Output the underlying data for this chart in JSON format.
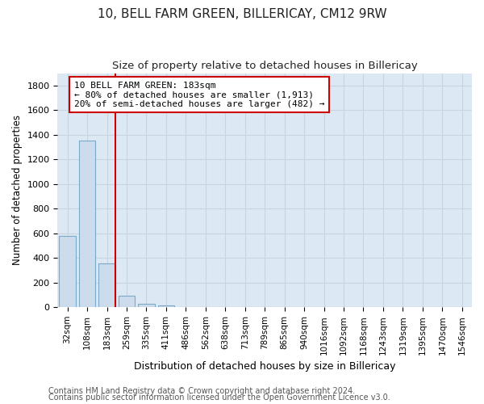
{
  "title1": "10, BELL FARM GREEN, BILLERICAY, CM12 9RW",
  "title2": "Size of property relative to detached houses in Billericay",
  "xlabel": "Distribution of detached houses by size in Billericay",
  "ylabel": "Number of detached properties",
  "footnote1": "Contains HM Land Registry data © Crown copyright and database right 2024.",
  "footnote2": "Contains public sector information licensed under the Open Government Licence v3.0.",
  "categories": [
    "32sqm",
    "108sqm",
    "183sqm",
    "259sqm",
    "335sqm",
    "411sqm",
    "486sqm",
    "562sqm",
    "638sqm",
    "713sqm",
    "789sqm",
    "865sqm",
    "940sqm",
    "1016sqm",
    "1092sqm",
    "1168sqm",
    "1243sqm",
    "1319sqm",
    "1395sqm",
    "1470sqm",
    "1546sqm"
  ],
  "values": [
    580,
    1355,
    355,
    95,
    30,
    14,
    0,
    0,
    0,
    0,
    0,
    0,
    0,
    0,
    0,
    0,
    0,
    0,
    0,
    0,
    0
  ],
  "bar_color": "#ccdcec",
  "bar_edge_color": "#7aaac8",
  "red_line_index": 2,
  "annotation_line1": "10 BELL FARM GREEN: 183sqm",
  "annotation_line2": "← 80% of detached houses are smaller (1,913)",
  "annotation_line3": "20% of semi-detached houses are larger (482) →",
  "annotation_box_color": "#ffffff",
  "annotation_box_edge": "#cc0000",
  "red_line_color": "#cc0000",
  "ylim": [
    0,
    1900
  ],
  "yticks": [
    0,
    200,
    400,
    600,
    800,
    1000,
    1200,
    1400,
    1600,
    1800
  ],
  "grid_color": "#c8d4e0",
  "background_color": "#ffffff",
  "plot_bg_color": "#dce8f4",
  "title1_fontsize": 11,
  "title2_fontsize": 9.5,
  "xlabel_fontsize": 9,
  "ylabel_fontsize": 8.5,
  "tick_fontsize": 8,
  "footnote_fontsize": 7
}
